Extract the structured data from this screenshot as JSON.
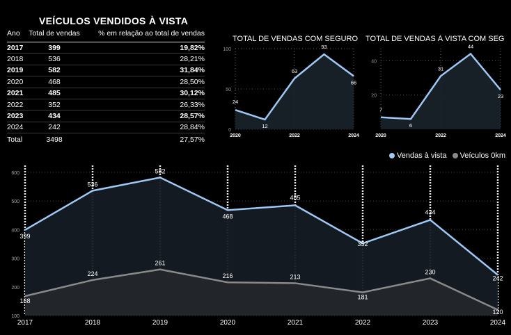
{
  "table": {
    "title": "VEÍCULOS VENDIDOS À VISTA",
    "headers": [
      "Ano",
      "Total de vendas",
      "% em relação ao total de vendas"
    ],
    "rows": [
      {
        "year": "2017",
        "total": "399",
        "pct": "19,82%",
        "bold": true
      },
      {
        "year": "2018",
        "total": "536",
        "pct": "28,21%",
        "bold": false
      },
      {
        "year": "2019",
        "total": "582",
        "pct": "31,84%",
        "bold": true
      },
      {
        "year": "2020",
        "total": "468",
        "pct": "28,50%",
        "bold": false
      },
      {
        "year": "2021",
        "total": "485",
        "pct": "30,12%",
        "bold": true
      },
      {
        "year": "2022",
        "total": "352",
        "pct": "26,33%",
        "bold": false
      },
      {
        "year": "2023",
        "total": "434",
        "pct": "28,57%",
        "bold": true
      },
      {
        "year": "2024",
        "total": "242",
        "pct": "28,84%",
        "bold": false
      }
    ],
    "total": {
      "year": "Total",
      "total": "3498",
      "pct": "27,57%"
    }
  },
  "legend": {
    "items": [
      {
        "label": "Vendas à vista",
        "color": "#9ec9f5"
      },
      {
        "label": "Veículos 0km",
        "color": "#8a8a8a"
      }
    ]
  },
  "chart_data": [
    {
      "type": "area",
      "title": "TOTAL DE VENDAS COM SEGURO",
      "x": [
        2020,
        2021,
        2022,
        2023,
        2024
      ],
      "x_ticks": [
        "2020",
        "2022",
        "2024"
      ],
      "y_ticks": [
        0,
        50,
        100
      ],
      "ylim": [
        0,
        100
      ],
      "series": [
        {
          "values": [
            24,
            12,
            63,
            93,
            66
          ],
          "color": "#9ec9f5"
        }
      ],
      "grid": true
    },
    {
      "type": "area",
      "title": "TOTAL DE VENDAS À VISTA COM SEGU...",
      "x": [
        2020,
        2021,
        2022,
        2023,
        2024
      ],
      "x_ticks": [
        "2020",
        "2022",
        "2024"
      ],
      "y_ticks": [
        20,
        40
      ],
      "ylim": [
        0,
        47
      ],
      "series": [
        {
          "values": [
            7,
            6,
            31,
            44,
            23
          ],
          "color": "#9ec9f5"
        }
      ],
      "grid": true
    },
    {
      "type": "area",
      "title": "",
      "x": [
        "2017",
        "2018",
        "2019",
        "2020",
        "2021",
        "2022",
        "2023",
        "2024"
      ],
      "y_ticks": [
        100,
        200,
        300,
        400,
        500,
        600
      ],
      "ylim": [
        100,
        600
      ],
      "legend_position": "top-right",
      "series": [
        {
          "name": "Vendas à vista",
          "values": [
            399,
            536,
            582,
            468,
            485,
            352,
            434,
            242
          ],
          "color": "#9ec9f5"
        },
        {
          "name": "Veículos 0km",
          "values": [
            168,
            224,
            261,
            216,
            213,
            181,
            230,
            120
          ],
          "color": "#8a8a8a"
        }
      ],
      "grid": true
    }
  ]
}
